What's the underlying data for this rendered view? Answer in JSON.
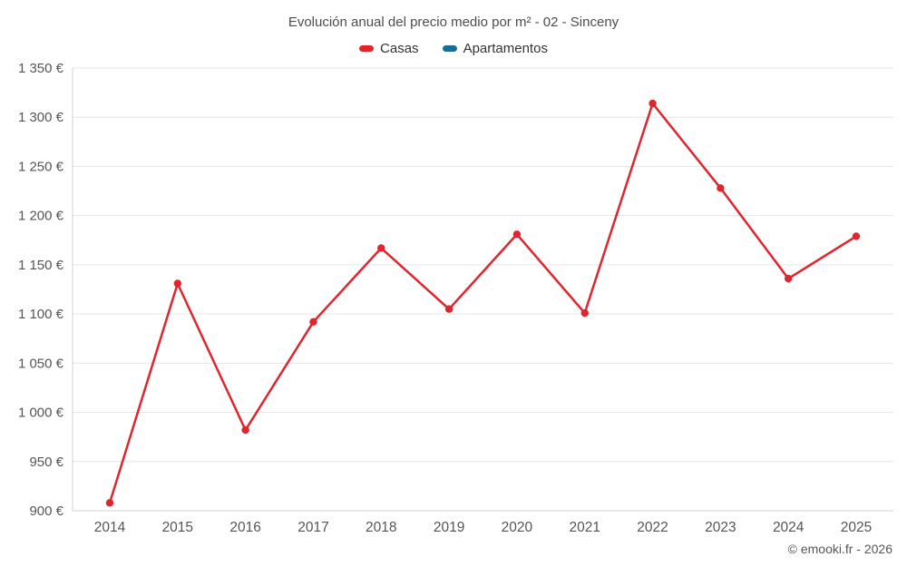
{
  "title": "Evolución anual del precio medio por m² - 02 - Sinceny",
  "copyright": "© emooki.fr - 2026",
  "legend": [
    {
      "label": "Casas",
      "color": "#e0252e"
    },
    {
      "label": "Apartamentos",
      "color": "#1a6e96"
    }
  ],
  "chart_data": {
    "type": "line",
    "title": "Evolución anual del precio medio por m² - 02 - Sinceny",
    "x": [
      2014,
      2015,
      2016,
      2017,
      2018,
      2019,
      2020,
      2021,
      2022,
      2023,
      2024,
      2025
    ],
    "series": [
      {
        "name": "Casas",
        "color": "#e0252e",
        "values": [
          908,
          1131,
          982,
          1092,
          1167,
          1105,
          1181,
          1101,
          1314,
          1228,
          1136,
          1179
        ]
      },
      {
        "name": "Apartamentos",
        "color": "#1a6e96",
        "values": []
      }
    ],
    "ylim": [
      900,
      1350
    ],
    "yticks": [
      900,
      950,
      1000,
      1050,
      1100,
      1150,
      1200,
      1250,
      1300,
      1350
    ],
    "ytick_labels": [
      "900 €",
      "950 €",
      "1 000 €",
      "1 050 €",
      "1 100 €",
      "1 150 €",
      "1 200 €",
      "1 250 €",
      "1 300 €",
      "1 350 €"
    ],
    "grid": true,
    "legend_position": "top",
    "grid_color": "#e6e6e6",
    "axis_color": "#d0d0d0",
    "tick_text_color": "#555555"
  }
}
